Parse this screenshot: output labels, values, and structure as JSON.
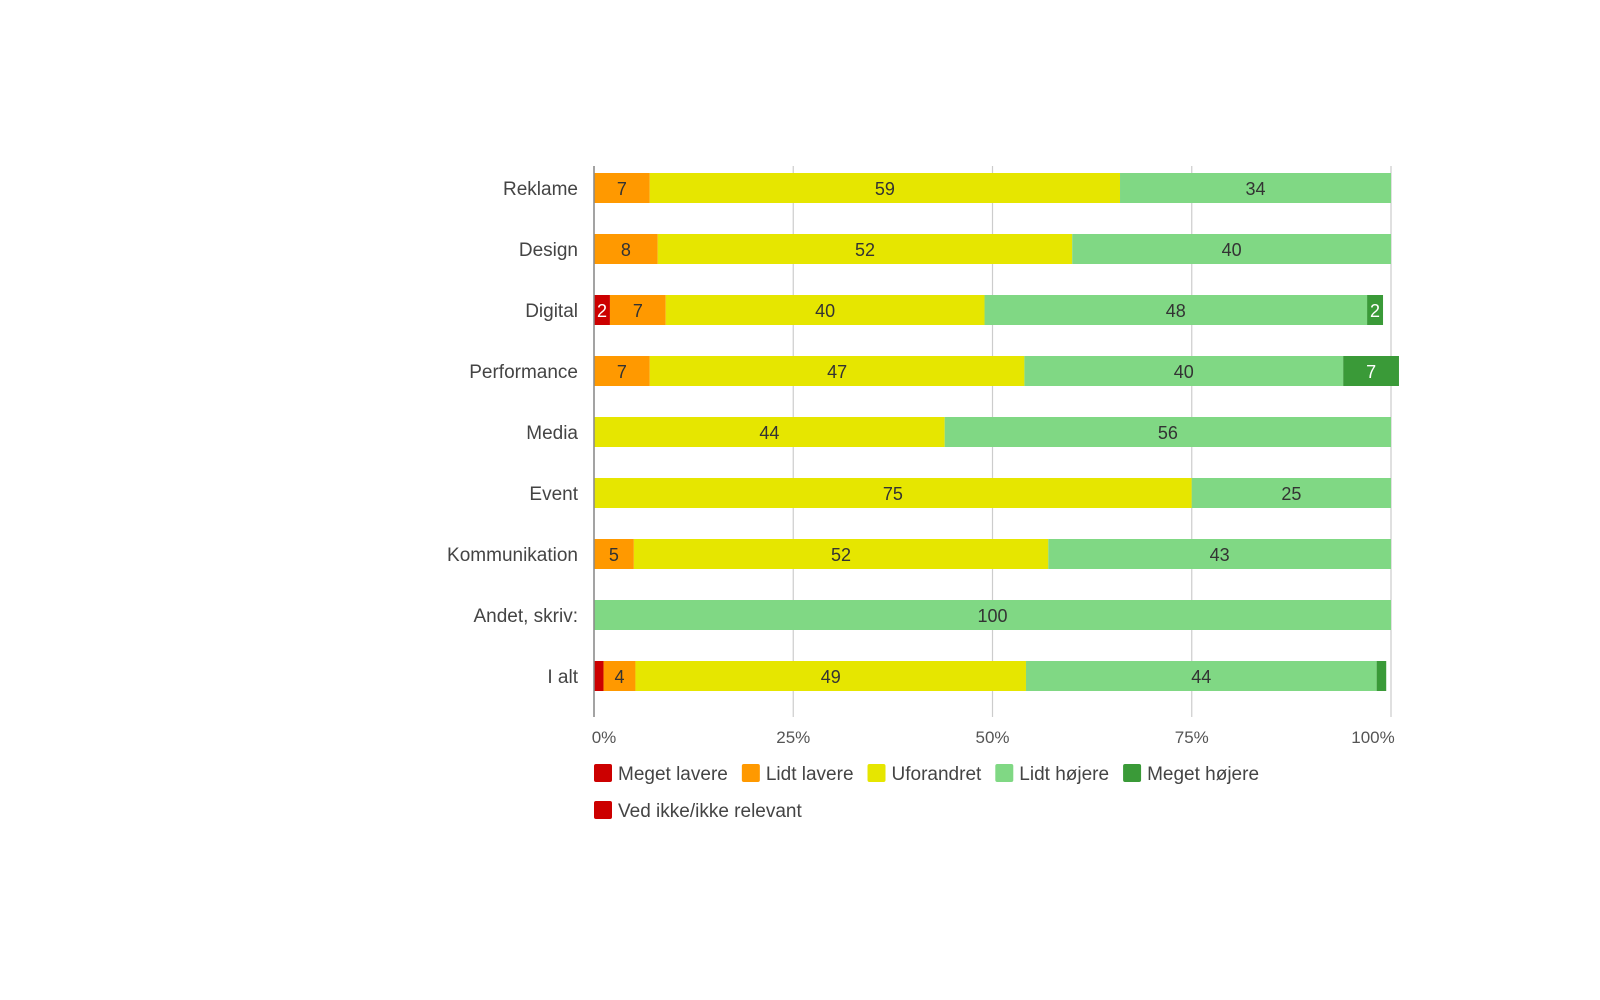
{
  "chart_data": {
    "type": "bar",
    "orientation": "horizontal",
    "stacked": "percent",
    "title": "",
    "xlabel": "",
    "ylabel": "",
    "xlim": [
      0,
      100
    ],
    "grid": true,
    "legend_position": "bottom",
    "categories": [
      "Reklame",
      "Design",
      "Digital",
      "Performance",
      "Media",
      "Event",
      "Kommunikation",
      "Andet, skriv:",
      "I alt"
    ],
    "tick_labels": [
      "0%",
      "25%",
      "50%",
      "75%",
      "100%"
    ],
    "tick_values": [
      0,
      25,
      50,
      75,
      100
    ],
    "series": [
      {
        "name": "Meget lavere",
        "color": "#cc0000",
        "label_color": "#ffffff",
        "values": [
          0,
          0,
          2,
          0,
          0,
          0,
          0,
          0,
          1.2
        ],
        "labels": [
          "",
          "",
          "2",
          "",
          "",
          "",
          "",
          "",
          ""
        ]
      },
      {
        "name": "Lidt lavere",
        "color": "#ff9900",
        "label_color": "#333333",
        "values": [
          7,
          8,
          7,
          7,
          0,
          0,
          5,
          0,
          4
        ],
        "labels": [
          "7",
          "8",
          "7",
          "7",
          "",
          "",
          "5",
          "",
          "4"
        ]
      },
      {
        "name": "Uforandret",
        "color": "#e6e600",
        "label_color": "#333333",
        "values": [
          59,
          52,
          40,
          47,
          44,
          75,
          52,
          0,
          49
        ],
        "labels": [
          "59",
          "52",
          "40",
          "47",
          "44",
          "75",
          "52",
          "",
          "49"
        ]
      },
      {
        "name": "Lidt højere",
        "color": "#80d884",
        "label_color": "#333333",
        "values": [
          34,
          40,
          48,
          40,
          56,
          25,
          43,
          100,
          44
        ],
        "labels": [
          "34",
          "40",
          "48",
          "40",
          "56",
          "25",
          "43",
          "100",
          "44"
        ]
      },
      {
        "name": "Meget højere",
        "color": "#3a9a38",
        "label_color": "#ffffff",
        "values": [
          0,
          0,
          2,
          7,
          0,
          0,
          0,
          0,
          1.2
        ],
        "labels": [
          "",
          "",
          "2",
          "7",
          "",
          "",
          "",
          "",
          ""
        ]
      },
      {
        "name": "Ved ikke/ikke relevant",
        "color": "#cc0000",
        "label_color": "#ffffff",
        "values": [
          0,
          0,
          0,
          0,
          0,
          0,
          0,
          0,
          0
        ],
        "labels": [
          "",
          "",
          "",
          "",
          "",
          "",
          "",
          "",
          ""
        ]
      }
    ]
  }
}
